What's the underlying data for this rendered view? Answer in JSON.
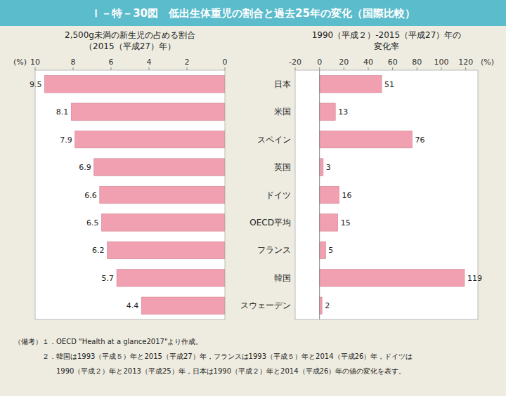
{
  "title": "Ｉ－特－30図　低出生体重児の割合と過去25年の変化（国際比較）",
  "notes": [
    "（備考）１．OECD \"Health at a glance2017\"より作成。",
    "　　　　２．韓国は1993（平成５）年と2015（平成27）年，フランスは1993（平成５）年と2014（平成26）年，ドイツは",
    "　　　　　　1990（平成２）年と2013（平成25）年，日本は1990（平成２）年と2014（平成26）年の値の変化を表す。"
  ],
  "chart_data": [
    {
      "type": "bar",
      "orientation": "horizontal",
      "title": "2,500g未満の新生児の占める割合",
      "subtitle": "（2015（平成27）年）",
      "xlabel": "(%)",
      "categories": [
        "スウェーデン",
        "韓国",
        "フランス",
        "OECD平均",
        "ドイツ",
        "英国",
        "スペイン",
        "米国",
        "日本"
      ],
      "values": [
        4.4,
        5.7,
        6.2,
        6.5,
        6.6,
        6.9,
        7.9,
        8.1,
        9.5
      ],
      "color": "#f0a0b0",
      "xlim": [
        10,
        0
      ],
      "xticks": [
        10,
        8,
        6,
        4,
        2,
        0
      ],
      "grid": false,
      "data_labels": true,
      "tick_labels": "x"
    },
    {
      "type": "bar",
      "orientation": "horizontal",
      "title": "1990（平成２）-2015（平成27）年の",
      "subtitle": "変化率",
      "xlabel": "(%)",
      "categories": [
        "スウェーデン",
        "韓国",
        "フランス",
        "OECD平均",
        "ドイツ",
        "英国",
        "スペイン",
        "米国",
        "日本"
      ],
      "values": [
        2,
        119,
        5,
        15,
        16,
        3,
        76,
        13,
        51
      ],
      "color": "#f0a0b0",
      "xlim": [
        -20,
        130
      ],
      "xticks": [
        -20,
        0,
        20,
        40,
        60,
        80,
        100,
        120
      ],
      "grid": false,
      "data_labels": true
    }
  ]
}
